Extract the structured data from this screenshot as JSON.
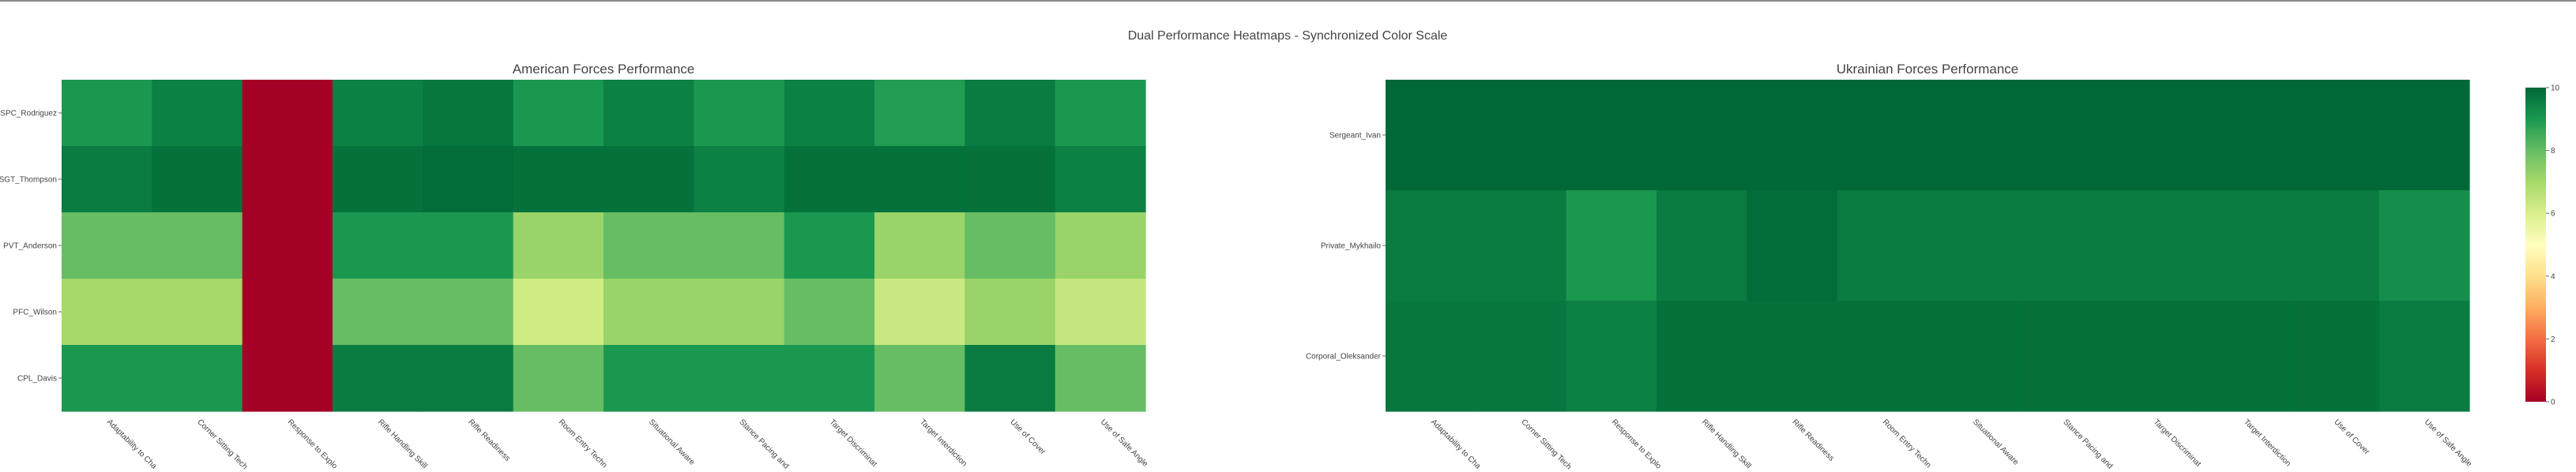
{
  "chart_data": {
    "type": "heatmap",
    "title": "Dual Performance Heatmaps - Synchronized Color Scale",
    "color_scale": {
      "name": "RdYlGn",
      "zmin": 0,
      "zmax": 10,
      "ticks": [
        "0",
        "2",
        "4",
        "6",
        "8",
        "10"
      ],
      "stops": [
        [
          0.0,
          "#a50026"
        ],
        [
          0.1,
          "#d73027"
        ],
        [
          0.2,
          "#f46d43"
        ],
        [
          0.3,
          "#fdae61"
        ],
        [
          0.4,
          "#fee08b"
        ],
        [
          0.5,
          "#ffffbf"
        ],
        [
          0.6,
          "#d9ef8b"
        ],
        [
          0.7,
          "#a6d96a"
        ],
        [
          0.8,
          "#66bd63"
        ],
        [
          0.9,
          "#1a9850"
        ],
        [
          1.0,
          "#006837"
        ]
      ]
    },
    "panels": [
      {
        "title": "American Forces Performance",
        "x_labels": [
          "Adaptability to Cha",
          "Corner Sitting Tech",
          "Response to Explo",
          "Rifle Handling Skill",
          "Rifle Readiness",
          "Room Entry Techn",
          "Situational Aware",
          "Stance Pacing and",
          "Target Discriminat",
          "Target Interdiction",
          "Use of Cover",
          "Use of Safe Angle"
        ],
        "y_labels": [
          "SPC_Rodriguez",
          "SGT_Thompson",
          "PVT_Anderson",
          "PFC_Wilson",
          "CPL_Davis"
        ],
        "z": [
          [
            9.0,
            9.5,
            0,
            9.5,
            9.7,
            9.0,
            9.5,
            9.0,
            9.5,
            8.9,
            9.6,
            9.0
          ],
          [
            9.6,
            9.8,
            0,
            9.8,
            9.9,
            9.8,
            9.8,
            9.5,
            9.8,
            9.8,
            9.8,
            9.5
          ],
          [
            8.0,
            8.0,
            0,
            9.0,
            9.0,
            7.2,
            8.0,
            8.0,
            9.0,
            7.2,
            8.0,
            7.2
          ],
          [
            7.0,
            7.0,
            0,
            8.0,
            8.0,
            6.2,
            7.2,
            7.2,
            8.0,
            6.3,
            7.2,
            6.4
          ],
          [
            9.0,
            9.0,
            0,
            9.6,
            9.6,
            8.0,
            9.0,
            9.0,
            9.0,
            8.0,
            9.6,
            8.0
          ]
        ]
      },
      {
        "title": "Ukrainian Forces Performance",
        "x_labels": [
          "Adaptability to Cha",
          "Corner Sitting Tech",
          "Response to Explo",
          "Rifle Handling Skill",
          "Rifle Readiness",
          "Room Entry Techn",
          "Situational Aware",
          "Stance Pacing and",
          "Target Discriminat",
          "Target Interdiction",
          "Use of Cover",
          "Use of Safe Angle"
        ],
        "y_labels": [
          "Sergeant_Ivan",
          "Private_Mykhailo",
          "Corporal_Oleksander"
        ],
        "z": [
          [
            10,
            10,
            10,
            10,
            10,
            10,
            10,
            10,
            10,
            10,
            10,
            10
          ],
          [
            9.6,
            9.6,
            9.0,
            9.6,
            9.9,
            9.6,
            9.6,
            9.6,
            9.6,
            9.6,
            9.6,
            9.2
          ],
          [
            9.7,
            9.7,
            9.5,
            9.8,
            9.8,
            9.8,
            9.8,
            9.8,
            9.8,
            9.8,
            9.8,
            9.6
          ]
        ]
      }
    ]
  }
}
